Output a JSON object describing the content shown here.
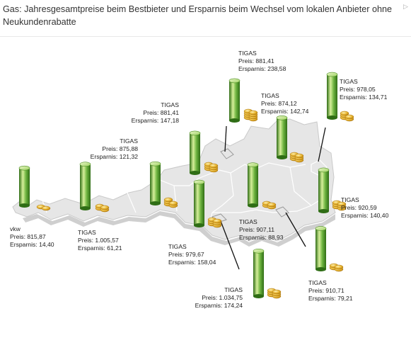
{
  "header": {
    "title": "Gas: Jahresgesamtpreise beim Bestbieter und Ersparnis beim Wechsel vom lokalen Anbieter ohne Neukundenrabatte"
  },
  "colors": {
    "cylinder_light": "#d6ef9a",
    "cylinder_mid": "#6db33f",
    "cylinder_dark": "#2f6d15",
    "map_fill": "#e6e6e6",
    "coin": "#e0a81e"
  },
  "chart_data": {
    "type": "map-cylinder",
    "price_label": "Preis:",
    "savings_label": "Ersparnis:",
    "regions": [
      {
        "supplier": "vkw",
        "price": "815,87",
        "savings": "14,40",
        "price_value": 815.87,
        "savings_value": 14.4
      },
      {
        "supplier": "TIGAS",
        "price": "1.005,57",
        "savings": "61,21",
        "price_value": 1005.57,
        "savings_value": 61.21
      },
      {
        "supplier": "TIGAS",
        "price": "875,88",
        "savings": "121,32",
        "price_value": 875.88,
        "savings_value": 121.32
      },
      {
        "supplier": "TIGAS",
        "price": "881,41",
        "savings": "147,18",
        "price_value": 881.41,
        "savings_value": 147.18
      },
      {
        "supplier": "TIGAS",
        "price": "979,67",
        "savings": "158,04",
        "price_value": 979.67,
        "savings_value": 158.04
      },
      {
        "supplier": "TIGAS",
        "price": "881,41",
        "savings": "238,58",
        "price_value": 881.41,
        "savings_value": 238.58
      },
      {
        "supplier": "TIGAS",
        "price": "874,12",
        "savings": "142,74",
        "price_value": 874.12,
        "savings_value": 142.74
      },
      {
        "supplier": "TIGAS",
        "price": "978,05",
        "savings": "134,71",
        "price_value": 978.05,
        "savings_value": 134.71
      },
      {
        "supplier": "TIGAS",
        "price": "907,11",
        "savings": "88,93",
        "price_value": 907.11,
        "savings_value": 88.93
      },
      {
        "supplier": "TIGAS",
        "price": "920,59",
        "savings": "140,40",
        "price_value": 920.59,
        "savings_value": 140.4
      },
      {
        "supplier": "TIGAS",
        "price": "1.034,75",
        "savings": "174,24",
        "price_value": 1034.75,
        "savings_value": 174.24
      },
      {
        "supplier": "TIGAS",
        "price": "910,71",
        "savings": "79,21",
        "price_value": 910.71,
        "savings_value": 79.21
      }
    ]
  }
}
